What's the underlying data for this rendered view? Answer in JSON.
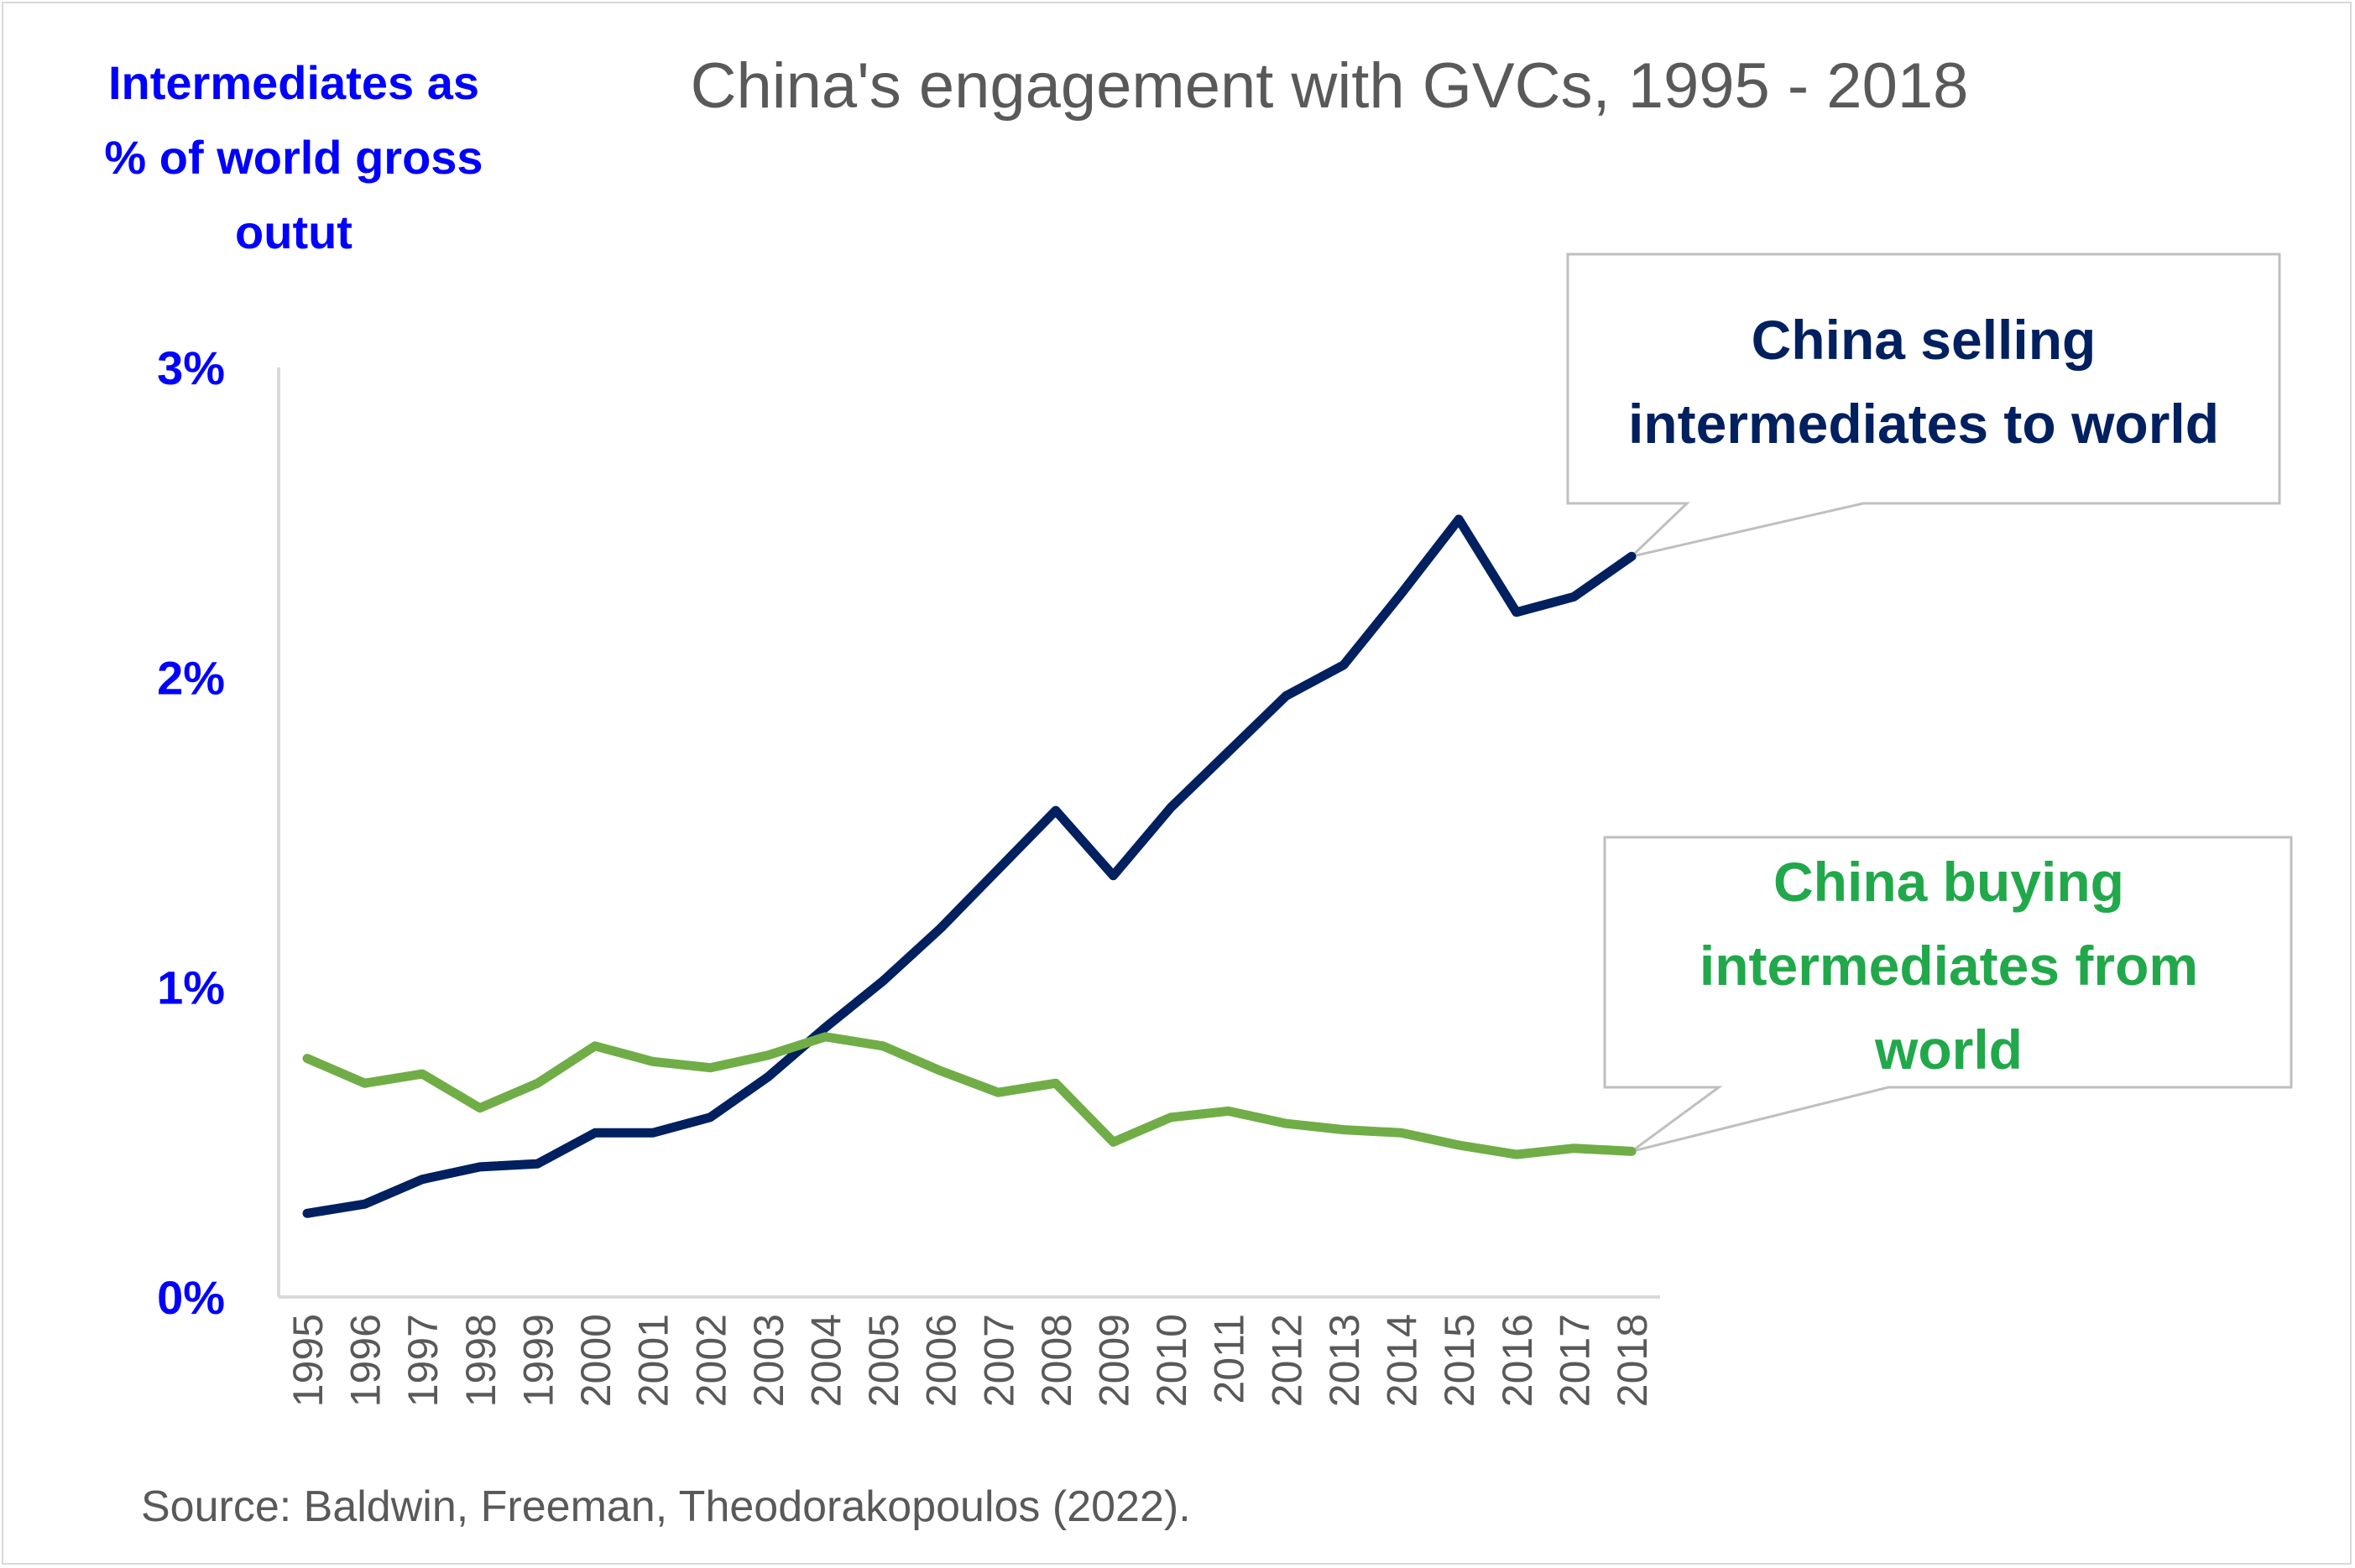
{
  "chart_data": {
    "type": "line",
    "title": "China's engagement with GVCs, 1995 - 2018",
    "ylabel_lines": [
      "Intermediates as",
      "% of world gross",
      "outut"
    ],
    "ylim": [
      0,
      3
    ],
    "yticks": [
      {
        "value": 0,
        "label": "0%"
      },
      {
        "value": 1,
        "label": "1%"
      },
      {
        "value": 2,
        "label": "2%"
      },
      {
        "value": 3,
        "label": "3%"
      }
    ],
    "x": [
      "1995",
      "1996",
      "1997",
      "1998",
      "1999",
      "2000",
      "2001",
      "2002",
      "2003",
      "2004",
      "2005",
      "2006",
      "2007",
      "2008",
      "2009",
      "2010",
      "2011",
      "2012",
      "2013",
      "2014",
      "2015",
      "2016",
      "2017",
      "2018"
    ],
    "series": [
      {
        "name": "China selling intermediates to world",
        "label_lines": [
          "China selling",
          "intermediates to world"
        ],
        "color": "#002060",
        "values": [
          0.27,
          0.3,
          0.38,
          0.42,
          0.43,
          0.53,
          0.53,
          0.58,
          0.71,
          0.87,
          1.02,
          1.19,
          1.38,
          1.57,
          1.36,
          1.58,
          1.76,
          1.94,
          2.04,
          2.27,
          2.51,
          2.21,
          2.26,
          2.39
        ]
      },
      {
        "name": "China buying intermediates from world",
        "label_lines": [
          "China buying",
          "intermediates from",
          "world"
        ],
        "color": "#70ad47",
        "values": [
          0.77,
          0.69,
          0.72,
          0.61,
          0.69,
          0.81,
          0.76,
          0.74,
          0.78,
          0.84,
          0.81,
          0.73,
          0.66,
          0.69,
          0.5,
          0.58,
          0.6,
          0.56,
          0.54,
          0.53,
          0.49,
          0.46,
          0.48,
          0.47
        ]
      }
    ],
    "source": "Source: Baldwin, Freeman, Theodorakopoulos (2022).",
    "grid": false,
    "legend": "callouts"
  }
}
